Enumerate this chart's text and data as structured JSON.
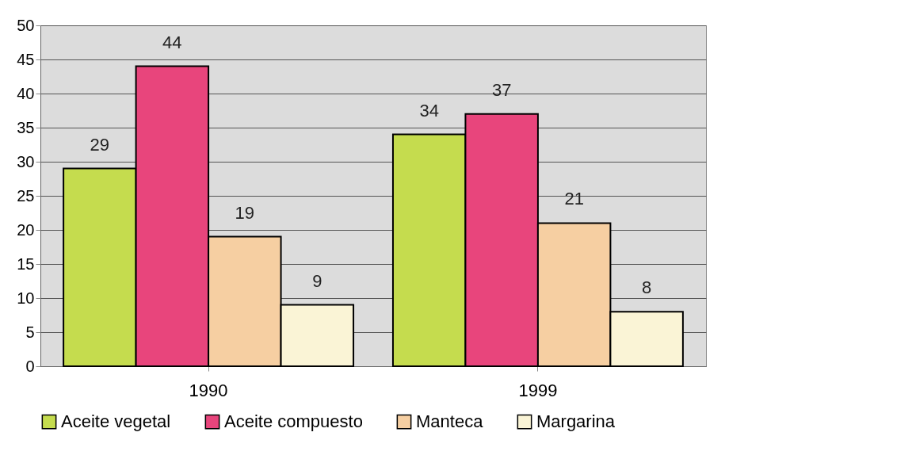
{
  "chart_data": {
    "type": "bar",
    "categories": [
      "1990",
      "1999"
    ],
    "series": [
      {
        "name": "Aceite vegetal",
        "color": "#c5dc4e",
        "values": [
          29,
          34
        ]
      },
      {
        "name": "Aceite compuesto",
        "color": "#e8457c",
        "values": [
          44,
          37
        ]
      },
      {
        "name": "Manteca",
        "color": "#f6cfa2",
        "values": [
          19,
          21
        ]
      },
      {
        "name": "Margarina",
        "color": "#faf4d6",
        "values": [
          9,
          8
        ]
      }
    ],
    "ylim": [
      0,
      50
    ],
    "yticks": [
      0,
      5,
      10,
      15,
      20,
      25,
      30,
      35,
      40,
      45,
      50
    ],
    "grid": "y",
    "legend": "bottom",
    "data_labels": true
  }
}
